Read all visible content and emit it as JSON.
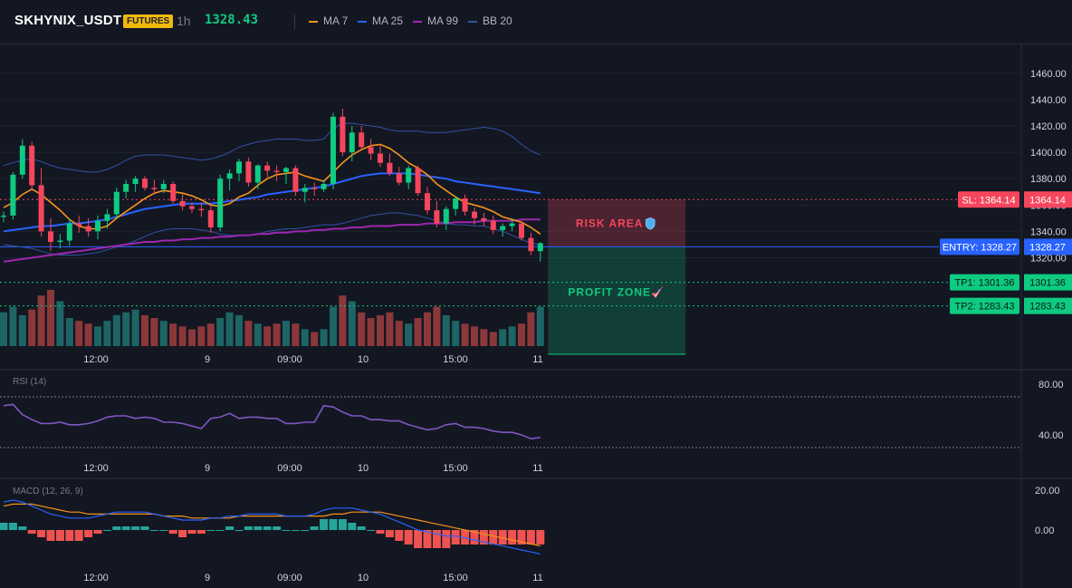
{
  "header": {
    "symbol": "SKHYNIX_USDT",
    "badge": "FUTURES",
    "timeframe": "1h",
    "last_price": "1328.43"
  },
  "legend": [
    {
      "label": "MA 7",
      "color": "#f7931a"
    },
    {
      "label": "MA 25",
      "color": "#2962ff"
    },
    {
      "label": "MA 99",
      "color": "#9c27b0"
    },
    {
      "label": "BB 20",
      "color": "#3151a6"
    }
  ],
  "colors": {
    "up": "#26a69a",
    "down": "#ef5350",
    "candle_up": "#0ecb81",
    "candle_down": "#f6465d",
    "entry": "#2962ff",
    "sl": "#f6465d",
    "tp": "#0ecb81",
    "rsi": "#7e57c2",
    "macd": "#2962ff",
    "signal": "#f7931a"
  },
  "price_axis": {
    "ticks": [
      "1460.00",
      "1440.00",
      "1420.00",
      "1400.00",
      "1380.00",
      "1360.00",
      "1340.00",
      "1320.00"
    ],
    "range": [
      1310,
      1475
    ]
  },
  "time_axis": {
    "labels": [
      "12:00",
      "9",
      "09:00",
      "10",
      "15:00",
      "11"
    ]
  },
  "trade": {
    "sl": {
      "label": "SL: 1364.14",
      "value": "1364.14",
      "price": 1364.14
    },
    "entry": {
      "label": "ENTRY: 1328.27",
      "value": "1328.27",
      "price": 1328.27
    },
    "tp1": {
      "label": "TP1: 1301.36",
      "value": "1301.36",
      "price": 1301.36
    },
    "tp2": {
      "label": "TP2: 1283.43",
      "value": "1283.43",
      "price": 1283.43
    },
    "risk_label": "RISK AREA",
    "profit_label": "PROFIT ZONE",
    "risk_icon": "shield-icon",
    "profit_icon": "rocket-icon"
  },
  "rsi": {
    "title": "RSI (14)",
    "ticks": [
      "80.00",
      "40.00"
    ],
    "overbought": 70,
    "oversold": 30
  },
  "macd": {
    "title": "MACD (12, 26, 9)",
    "ticks": [
      "20.00",
      "0.00"
    ]
  },
  "chart_data": {
    "type": "candlestick",
    "candles": [
      [
        1351,
        1355,
        1347,
        1352
      ],
      [
        1352,
        1385,
        1349,
        1383
      ],
      [
        1383,
        1410,
        1380,
        1405
      ],
      [
        1405,
        1408,
        1372,
        1375
      ],
      [
        1375,
        1388,
        1336,
        1340
      ],
      [
        1340,
        1350,
        1325,
        1332
      ],
      [
        1332,
        1338,
        1327,
        1333
      ],
      [
        1333,
        1350,
        1329,
        1346
      ],
      [
        1346,
        1352,
        1339,
        1344
      ],
      [
        1344,
        1350,
        1336,
        1340
      ],
      [
        1340,
        1352,
        1334,
        1348
      ],
      [
        1348,
        1357,
        1342,
        1353
      ],
      [
        1353,
        1373,
        1350,
        1370
      ],
      [
        1370,
        1379,
        1365,
        1376
      ],
      [
        1376,
        1382,
        1370,
        1380
      ],
      [
        1380,
        1382,
        1371,
        1373
      ],
      [
        1373,
        1379,
        1368,
        1372
      ],
      [
        1372,
        1379,
        1369,
        1376
      ],
      [
        1376,
        1378,
        1361,
        1363
      ],
      [
        1363,
        1368,
        1356,
        1359
      ],
      [
        1359,
        1362,
        1354,
        1357
      ],
      [
        1357,
        1362,
        1351,
        1356
      ],
      [
        1356,
        1359,
        1339,
        1343
      ],
      [
        1343,
        1383,
        1340,
        1380
      ],
      [
        1380,
        1387,
        1371,
        1384
      ],
      [
        1384,
        1395,
        1378,
        1393
      ],
      [
        1393,
        1396,
        1374,
        1377
      ],
      [
        1377,
        1391,
        1372,
        1390
      ],
      [
        1390,
        1393,
        1381,
        1386
      ],
      [
        1386,
        1390,
        1378,
        1385
      ],
      [
        1385,
        1389,
        1376,
        1388
      ],
      [
        1388,
        1390,
        1367,
        1370
      ],
      [
        1370,
        1376,
        1362,
        1373
      ],
      [
        1373,
        1377,
        1367,
        1372
      ],
      [
        1372,
        1379,
        1370,
        1376
      ],
      [
        1376,
        1430,
        1372,
        1427
      ],
      [
        1427,
        1433,
        1397,
        1400
      ],
      [
        1400,
        1420,
        1393,
        1415
      ],
      [
        1415,
        1420,
        1402,
        1404
      ],
      [
        1404,
        1410,
        1394,
        1399
      ],
      [
        1399,
        1405,
        1389,
        1392
      ],
      [
        1392,
        1399,
        1382,
        1384
      ],
      [
        1384,
        1389,
        1375,
        1377
      ],
      [
        1377,
        1390,
        1372,
        1388
      ],
      [
        1388,
        1390,
        1367,
        1369
      ],
      [
        1369,
        1374,
        1353,
        1356
      ],
      [
        1356,
        1363,
        1343,
        1346
      ],
      [
        1346,
        1359,
        1341,
        1357
      ],
      [
        1357,
        1367,
        1352,
        1365
      ],
      [
        1365,
        1368,
        1352,
        1355
      ],
      [
        1355,
        1358,
        1345,
        1350
      ],
      [
        1350,
        1354,
        1344,
        1348
      ],
      [
        1348,
        1352,
        1338,
        1341
      ],
      [
        1341,
        1346,
        1336,
        1344
      ],
      [
        1344,
        1350,
        1340,
        1346
      ],
      [
        1346,
        1348,
        1333,
        1335
      ],
      [
        1335,
        1339,
        1322,
        1325
      ],
      [
        1325,
        1332,
        1317,
        1331
      ]
    ],
    "ma7": [
      1358,
      1362,
      1368,
      1372,
      1368,
      1362,
      1356,
      1349,
      1344,
      1342,
      1342,
      1344,
      1350,
      1355,
      1360,
      1365,
      1369,
      1371,
      1370,
      1369,
      1367,
      1364,
      1360,
      1359,
      1361,
      1366,
      1369,
      1375,
      1380,
      1383,
      1384,
      1385,
      1382,
      1380,
      1378,
      1385,
      1392,
      1398,
      1402,
      1405,
      1406,
      1403,
      1398,
      1392,
      1388,
      1383,
      1376,
      1371,
      1366,
      1362,
      1360,
      1358,
      1355,
      1351,
      1349,
      1347,
      1343,
      1338
    ],
    "ma25": [
      1340,
      1341,
      1342,
      1343,
      1344,
      1344,
      1345,
      1346,
      1346,
      1347,
      1348,
      1349,
      1351,
      1353,
      1355,
      1357,
      1358,
      1359,
      1360,
      1361,
      1361,
      1361,
      1361,
      1362,
      1363,
      1364,
      1365,
      1366,
      1368,
      1369,
      1370,
      1371,
      1372,
      1373,
      1374,
      1376,
      1378,
      1380,
      1382,
      1383,
      1384,
      1384,
      1384,
      1384,
      1383,
      1382,
      1381,
      1380,
      1378,
      1377,
      1376,
      1375,
      1374,
      1373,
      1372,
      1371,
      1370,
      1369
    ],
    "ma99": [
      1317,
      1318,
      1319,
      1320,
      1321,
      1322,
      1323,
      1324,
      1325,
      1326,
      1327,
      1328,
      1329,
      1330,
      1331,
      1332,
      1332,
      1333,
      1333,
      1334,
      1334,
      1335,
      1335,
      1336,
      1336,
      1337,
      1337,
      1338,
      1338,
      1339,
      1339,
      1340,
      1340,
      1341,
      1341,
      1342,
      1342,
      1343,
      1343,
      1344,
      1344,
      1344,
      1345,
      1345,
      1345,
      1346,
      1346,
      1346,
      1347,
      1347,
      1347,
      1348,
      1348,
      1348,
      1348,
      1349,
      1349,
      1349
    ],
    "bb_upper": [
      1390,
      1392,
      1394,
      1395,
      1393,
      1390,
      1388,
      1387,
      1386,
      1385,
      1385,
      1387,
      1390,
      1394,
      1397,
      1398,
      1398,
      1398,
      1397,
      1396,
      1395,
      1394,
      1395,
      1397,
      1400,
      1404,
      1406,
      1408,
      1409,
      1410,
      1410,
      1410,
      1409,
      1409,
      1410,
      1418,
      1422,
      1422,
      1421,
      1420,
      1419,
      1417,
      1416,
      1416,
      1416,
      1415,
      1415,
      1415,
      1416,
      1417,
      1418,
      1419,
      1418,
      1416,
      1412,
      1406,
      1401,
      1398
    ],
    "bb_lower": [
      1330,
      1329,
      1328,
      1327,
      1325,
      1323,
      1322,
      1322,
      1322,
      1323,
      1324,
      1326,
      1328,
      1330,
      1333,
      1336,
      1339,
      1341,
      1342,
      1342,
      1342,
      1341,
      1340,
      1338,
      1337,
      1337,
      1337,
      1338,
      1340,
      1341,
      1342,
      1342,
      1343,
      1344,
      1345,
      1345,
      1346,
      1348,
      1350,
      1352,
      1353,
      1354,
      1354,
      1353,
      1352,
      1350,
      1348,
      1346,
      1345,
      1345,
      1344,
      1344,
      1342,
      1340,
      1337,
      1334,
      1331,
      1330
    ],
    "volume": [
      12,
      14,
      11,
      13,
      18,
      20,
      16,
      10,
      9,
      8,
      7,
      9,
      11,
      12,
      13,
      11,
      10,
      9,
      8,
      7,
      6,
      7,
      8,
      10,
      12,
      11,
      9,
      8,
      7,
      8,
      9,
      8,
      6,
      5,
      6,
      14,
      18,
      16,
      12,
      10,
      11,
      12,
      9,
      8,
      10,
      12,
      14,
      11,
      9,
      8,
      7,
      6,
      5,
      6,
      7,
      8,
      12,
      14
    ],
    "volume_unit": "relative",
    "rsi": [
      63,
      64,
      56,
      52,
      49,
      49,
      50,
      48,
      48,
      49,
      51,
      54,
      55,
      55,
      53,
      54,
      53,
      50,
      50,
      49,
      47,
      45,
      53,
      54,
      57,
      53,
      54,
      54,
      53,
      53,
      49,
      49,
      50,
      50,
      63,
      62,
      58,
      55,
      55,
      52,
      52,
      51,
      51,
      48,
      46,
      44,
      45,
      48,
      49,
      46,
      46,
      45,
      43,
      42,
      42,
      40,
      37,
      38
    ],
    "macd_line": [
      14,
      15,
      14,
      12,
      10,
      8,
      7,
      6,
      6,
      6,
      7,
      8,
      9,
      9,
      9,
      9,
      8,
      7,
      6,
      5,
      5,
      5,
      6,
      6,
      7,
      7,
      8,
      8,
      8,
      8,
      7,
      7,
      7,
      8,
      10,
      11,
      11,
      11,
      10,
      9,
      8,
      6,
      4,
      2,
      0,
      -1,
      -2,
      -3,
      -3,
      -4,
      -5,
      -6,
      -7,
      -8,
      -9,
      -10,
      -11,
      -12
    ],
    "macd_signal": [
      12,
      13,
      13,
      13,
      12,
      11,
      10,
      9,
      9,
      8,
      8,
      8,
      8,
      8,
      8,
      8,
      8,
      7,
      7,
      7,
      6,
      6,
      6,
      6,
      6,
      7,
      7,
      7,
      7,
      7,
      7,
      7,
      7,
      7,
      7,
      8,
      8,
      9,
      9,
      9,
      9,
      8,
      7,
      6,
      5,
      4,
      3,
      2,
      1,
      0,
      -1,
      -2,
      -3,
      -4,
      -5,
      -6,
      -7,
      -8
    ],
    "macd_hist": [
      2,
      2,
      1,
      -1,
      -2,
      -3,
      -3,
      -3,
      -3,
      -2,
      -1,
      0,
      1,
      1,
      1,
      1,
      0,
      0,
      -1,
      -2,
      -1,
      -1,
      0,
      0,
      1,
      0,
      1,
      1,
      1,
      1,
      0,
      0,
      0,
      1,
      3,
      3,
      3,
      2,
      1,
      0,
      -1,
      -2,
      -3,
      -4,
      -5,
      -5,
      -5,
      -5,
      -4,
      -4,
      -4,
      -4,
      -4,
      -4,
      -4,
      -4,
      -4,
      -4
    ]
  }
}
